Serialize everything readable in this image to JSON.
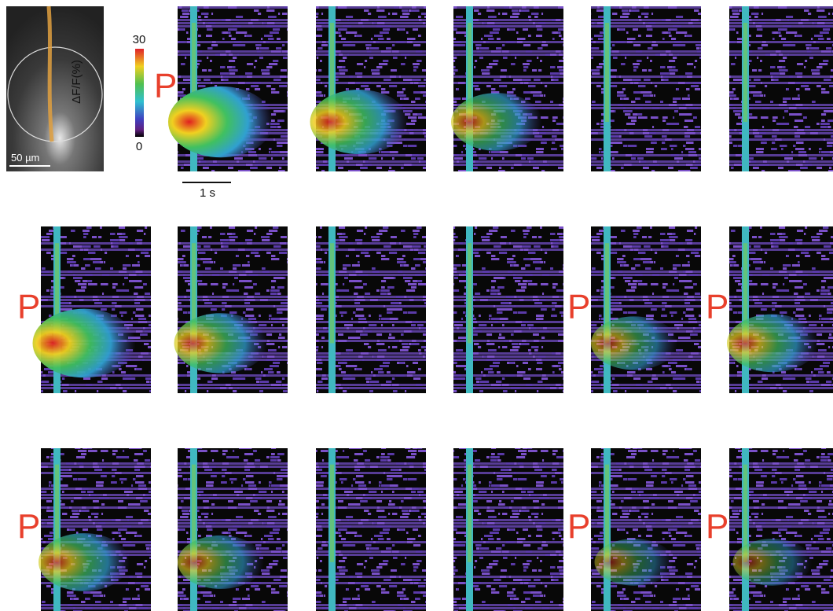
{
  "image": {
    "scale_bar": "50 µm"
  },
  "colorbar": {
    "label": "ΔF/F(%)",
    "max": "30",
    "min": "0"
  },
  "time_scale": "1 s",
  "rows": [
    {
      "labels": [
        "P",
        null,
        null,
        null,
        null
      ]
    },
    {
      "labels": [
        "P",
        null,
        null,
        null,
        "P",
        "P"
      ]
    },
    {
      "labels": [
        "P",
        null,
        null,
        null,
        "P",
        "P"
      ]
    }
  ]
}
